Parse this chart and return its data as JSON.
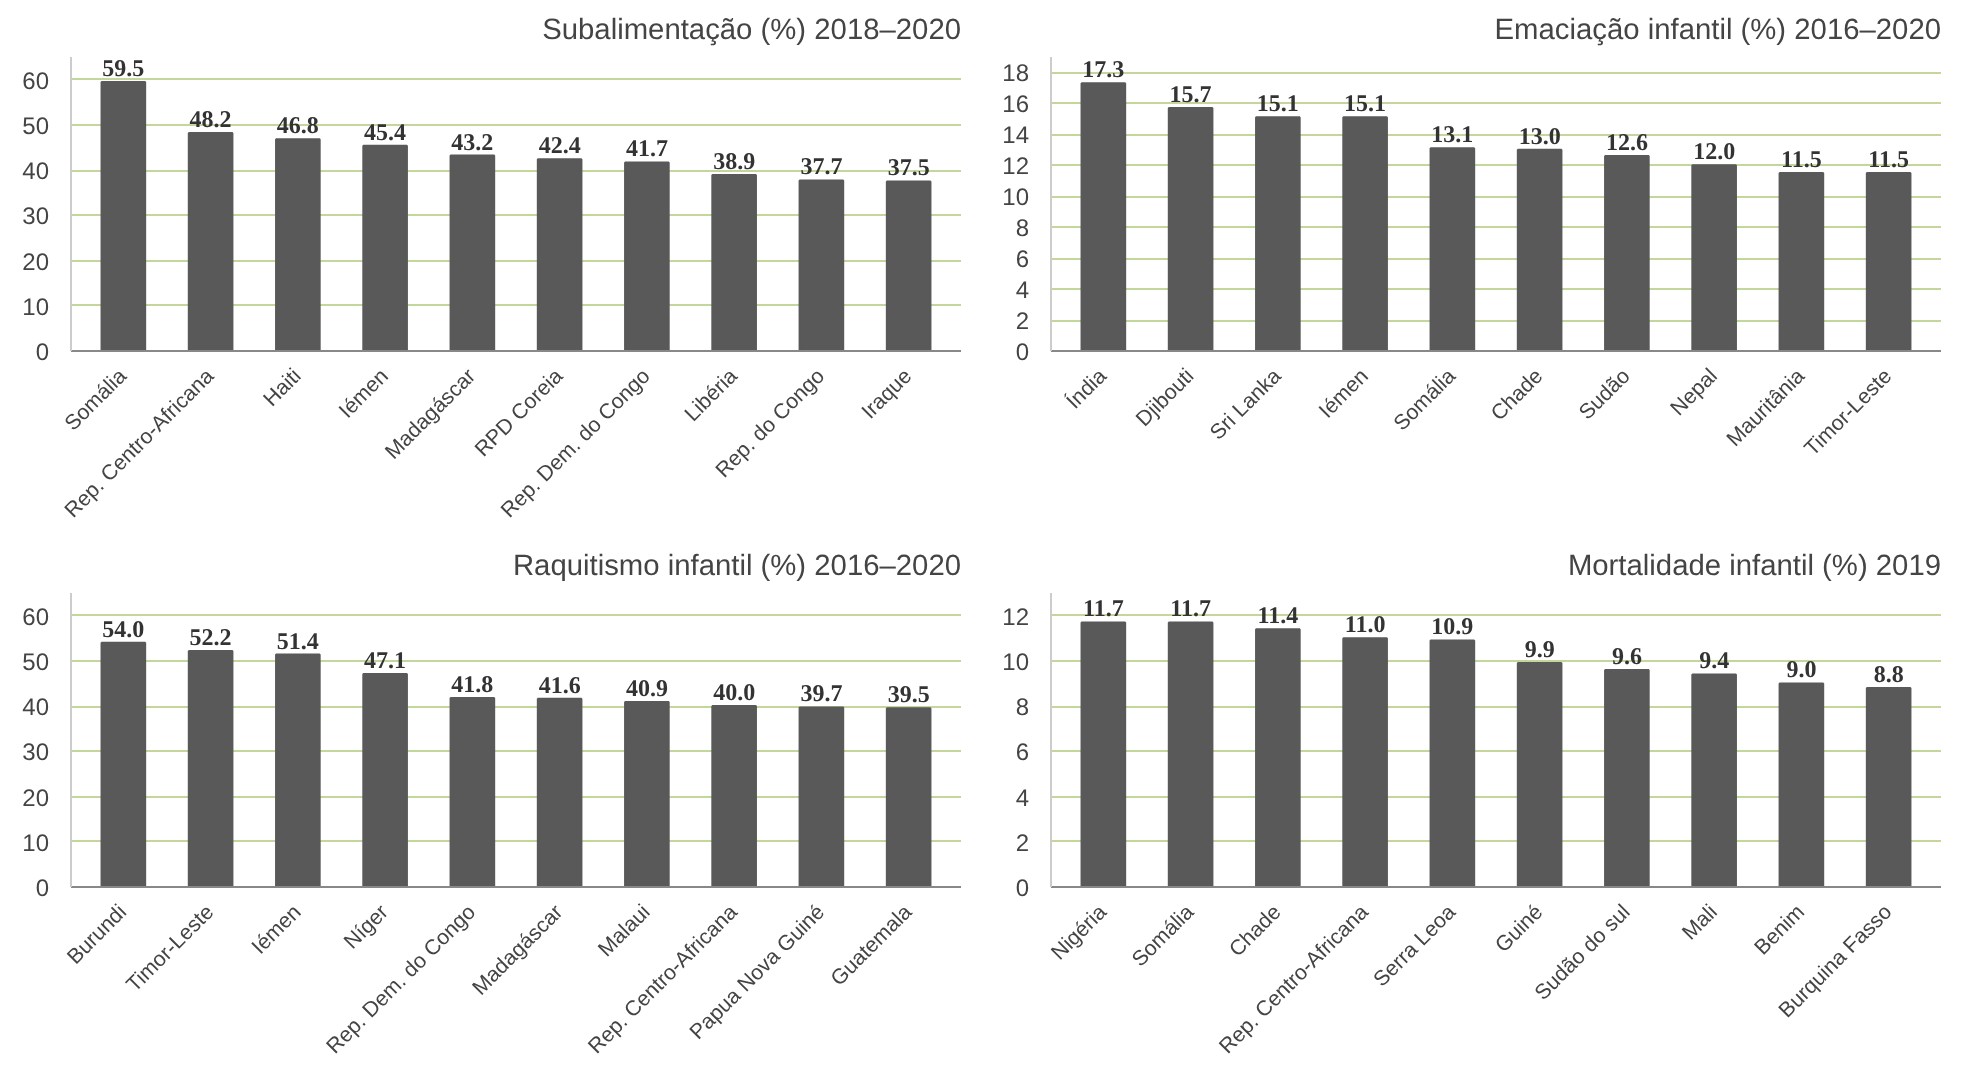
{
  "chart_data": [
    {
      "type": "bar",
      "title": "Subalimentação (%) 2018–2020",
      "categories": [
        "Somália",
        "Rep. Centro-Africana",
        "Haiti",
        "Iémen",
        "Madagáscar",
        "RPD Coreia",
        "Rep. Dem. do Congo",
        "Libéria",
        "Rep. do Congo",
        "Iraque"
      ],
      "values": [
        59.5,
        48.2,
        46.8,
        45.4,
        43.2,
        42.4,
        41.7,
        38.9,
        37.7,
        37.5
      ],
      "value_labels": [
        "59.5",
        "48.2",
        "46.8",
        "45.4",
        "43.2",
        "42.4",
        "41.7",
        "38.9",
        "37.7",
        "37.5"
      ],
      "color": "#595959",
      "ylim": [
        0,
        65
      ],
      "yticks": [
        0,
        10,
        20,
        30,
        40,
        50,
        60
      ],
      "grid": "y"
    },
    {
      "type": "bar",
      "title": "Emaciação infantil (%) 2016–2020",
      "categories": [
        "Índia",
        "Djibouti",
        "Sri Lanka",
        "Iémen",
        "Somália",
        "Chade",
        "Sudão",
        "Nepal",
        "Mauritânia",
        "Timor-Leste"
      ],
      "values": [
        17.3,
        15.7,
        15.1,
        15.1,
        13.1,
        13.0,
        12.6,
        12.0,
        11.5,
        11.5
      ],
      "value_labels": [
        "17.3",
        "15.7",
        "15.1",
        "15.1",
        "13.1",
        "13.0",
        "12.6",
        "12.0",
        "11.5",
        "11.5"
      ],
      "color": "#595959",
      "ylim": [
        0,
        19
      ],
      "yticks": [
        0,
        2,
        4,
        6,
        8,
        10,
        12,
        14,
        16,
        18
      ],
      "grid": "y"
    },
    {
      "type": "bar",
      "title": "Raquitismo infantil (%) 2016–2020",
      "categories": [
        "Burundi",
        "Timor-Leste",
        "Iémen",
        "Níger",
        "Rep. Dem. do Congo",
        "Madagáscar",
        "Malaui",
        "Rep. Centro-Africana",
        "Papua Nova Guiné",
        "Guatemala"
      ],
      "values": [
        54.0,
        52.2,
        51.4,
        47.1,
        41.8,
        41.6,
        40.9,
        40.0,
        39.7,
        39.5
      ],
      "value_labels": [
        "54.0",
        "52.2",
        "51.4",
        "47.1",
        "41.8",
        "41.6",
        "40.9",
        "40.0",
        "39.7",
        "39.5"
      ],
      "color": "#595959",
      "ylim": [
        0,
        65
      ],
      "yticks": [
        0,
        10,
        20,
        30,
        40,
        50,
        60
      ],
      "grid": "y"
    },
    {
      "type": "bar",
      "title": "Mortalidade infantil (%) 2019",
      "categories": [
        "Nigéria",
        "Somália",
        "Chade",
        "Rep. Centro-Africana",
        "Serra Leoa",
        "Guiné",
        "Sudão do sul",
        "Mali",
        "Benim",
        "Burquina Fasso"
      ],
      "values": [
        11.7,
        11.7,
        11.4,
        11.0,
        10.9,
        9.9,
        9.6,
        9.4,
        9.0,
        8.8
      ],
      "value_labels": [
        "11.7",
        "11.7",
        "11.4",
        "11.0",
        "10.9",
        "9.9",
        "9.6",
        "9.4",
        "9.0",
        "8.8"
      ],
      "color": "#595959",
      "ylim": [
        0,
        13
      ],
      "yticks": [
        0,
        2,
        4,
        6,
        8,
        10,
        12
      ],
      "grid": "y"
    }
  ]
}
